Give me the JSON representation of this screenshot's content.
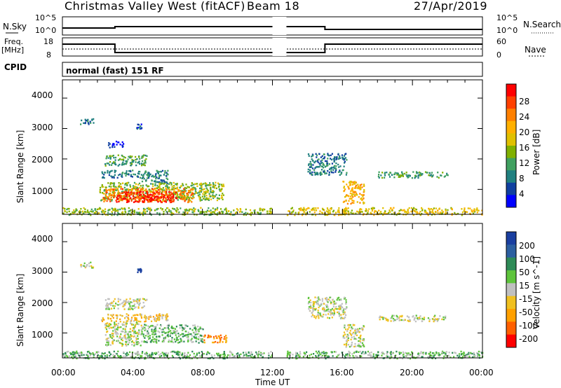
{
  "header": {
    "title": "Christmas Valley West (fitACF)",
    "beam": "Beam 18",
    "date": "27/Apr/2019"
  },
  "top_panels": {
    "nsky_label": "N.Sky",
    "nsky_ticks": [
      "10^5",
      "10^0"
    ],
    "nsearch_label": "N.Search",
    "nsearch_ticks": [
      "10^5",
      "10^0"
    ],
    "freq_label": "Freq.",
    "freq_unit": "[MHz]",
    "freq_ticks": [
      "18",
      "8"
    ],
    "nave_label": "Nave",
    "nave_ticks": [
      "60",
      "0"
    ],
    "cpid_label": "CPID",
    "cpid_value": "normal (fast) 151 RF"
  },
  "axes": {
    "ylabel": "Slant Range [km]",
    "xlabel": "Time UT",
    "yticks": [
      "4000",
      "3000",
      "2000",
      "1000"
    ],
    "xticks": [
      "00:00",
      "04:00",
      "08:00",
      "12:00",
      "16:00",
      "20:00",
      "00:00"
    ]
  },
  "power_scale": {
    "label": "Power [dB]",
    "ticks": [
      "28",
      "24",
      "20",
      "16",
      "12",
      "8",
      "4"
    ],
    "colors": [
      "#ff0000",
      "#ff4000",
      "#ff8000",
      "#ffb000",
      "#e0c000",
      "#80b000",
      "#40a060",
      "#208080",
      "#1040a0",
      "#0000ff"
    ]
  },
  "velocity_scale": {
    "label": "Velocity [m s^-1]",
    "ticks": [
      "200",
      "100",
      "50",
      "15",
      "-15",
      "-50",
      "-100",
      "-200"
    ],
    "colors": [
      "#1a3fa0",
      "#2c5fa0",
      "#2e8b57",
      "#5ec43c",
      "#c0c0c0",
      "#f0c020",
      "#ffa000",
      "#ff6000",
      "#ff0000"
    ]
  },
  "chart_data": [
    {
      "type": "heatmap",
      "title": "Power",
      "ylabel": "Slant Range [km]",
      "xlabel": "Time UT",
      "colorbar_label": "Power [dB]",
      "x_range_hours": [
        0,
        24
      ],
      "y_range_km": [
        180,
        4600
      ],
      "gap_hours": [
        12.0,
        12.8
      ],
      "regions": [
        {
          "t": [
            1.0,
            1.8
          ],
          "r": [
            3150,
            3350
          ],
          "level": 7
        },
        {
          "t": [
            2.6,
            3.5
          ],
          "r": [
            2400,
            2600
          ],
          "level": 9
        },
        {
          "t": [
            4.2,
            4.5
          ],
          "r": [
            3000,
            3200
          ],
          "level": 8
        },
        {
          "t": [
            2.4,
            4.8
          ],
          "r": [
            1800,
            2150
          ],
          "level": 6
        },
        {
          "t": [
            2.2,
            6.0
          ],
          "r": [
            1400,
            1650
          ],
          "level": 7
        },
        {
          "t": [
            4.5,
            6.0
          ],
          "r": [
            1200,
            1400
          ],
          "level": 7
        },
        {
          "t": [
            2.1,
            9.2
          ],
          "r": [
            650,
            1250
          ],
          "level": 5
        },
        {
          "t": [
            2.3,
            7.5
          ],
          "r": [
            600,
            1050
          ],
          "level": 2
        },
        {
          "t": [
            3.0,
            6.5
          ],
          "r": [
            600,
            950
          ],
          "level": 0
        },
        {
          "t": [
            14.0,
            16.2
          ],
          "r": [
            1500,
            2200
          ],
          "level": 7
        },
        {
          "t": [
            16.0,
            17.2
          ],
          "r": [
            550,
            1300
          ],
          "level": 3
        },
        {
          "t": [
            18.0,
            22.0
          ],
          "r": [
            1400,
            1600
          ],
          "level": 6
        },
        {
          "t": [
            0.0,
            12.0
          ],
          "r": [
            180,
            420
          ],
          "level": 5
        },
        {
          "t": [
            12.8,
            24.0
          ],
          "r": [
            180,
            420
          ],
          "level": 4
        }
      ]
    },
    {
      "type": "heatmap",
      "title": "Velocity",
      "ylabel": "Slant Range [km]",
      "xlabel": "Time UT",
      "colorbar_label": "Velocity [m s^-1]",
      "x_range_hours": [
        0,
        24
      ],
      "y_range_km": [
        180,
        4600
      ],
      "gap_hours": [
        12.0,
        12.8
      ],
      "regions": [
        {
          "t": [
            1.0,
            1.8
          ],
          "r": [
            3150,
            3350
          ],
          "level": 4
        },
        {
          "t": [
            4.2,
            4.5
          ],
          "r": [
            3000,
            3200
          ],
          "level": 0
        },
        {
          "t": [
            2.4,
            4.8
          ],
          "r": [
            1800,
            2150
          ],
          "level": 4
        },
        {
          "t": [
            2.2,
            6.0
          ],
          "r": [
            1400,
            1650
          ],
          "level": 5
        },
        {
          "t": [
            2.4,
            4.5
          ],
          "r": [
            600,
            1400
          ],
          "level": 4
        },
        {
          "t": [
            4.5,
            8.0
          ],
          "r": [
            700,
            1300
          ],
          "level": 3
        },
        {
          "t": [
            8.0,
            9.4
          ],
          "r": [
            700,
            950
          ],
          "level": 6
        },
        {
          "t": [
            14.0,
            16.2
          ],
          "r": [
            1500,
            2200
          ],
          "level": 4
        },
        {
          "t": [
            16.0,
            17.2
          ],
          "r": [
            550,
            1300
          ],
          "level": 4
        },
        {
          "t": [
            18.0,
            22.0
          ],
          "r": [
            1400,
            1600
          ],
          "level": 4
        },
        {
          "t": [
            0.0,
            12.0
          ],
          "r": [
            180,
            420
          ],
          "level": 3
        },
        {
          "t": [
            12.8,
            24.0
          ],
          "r": [
            180,
            420
          ],
          "level": 3
        }
      ]
    }
  ]
}
